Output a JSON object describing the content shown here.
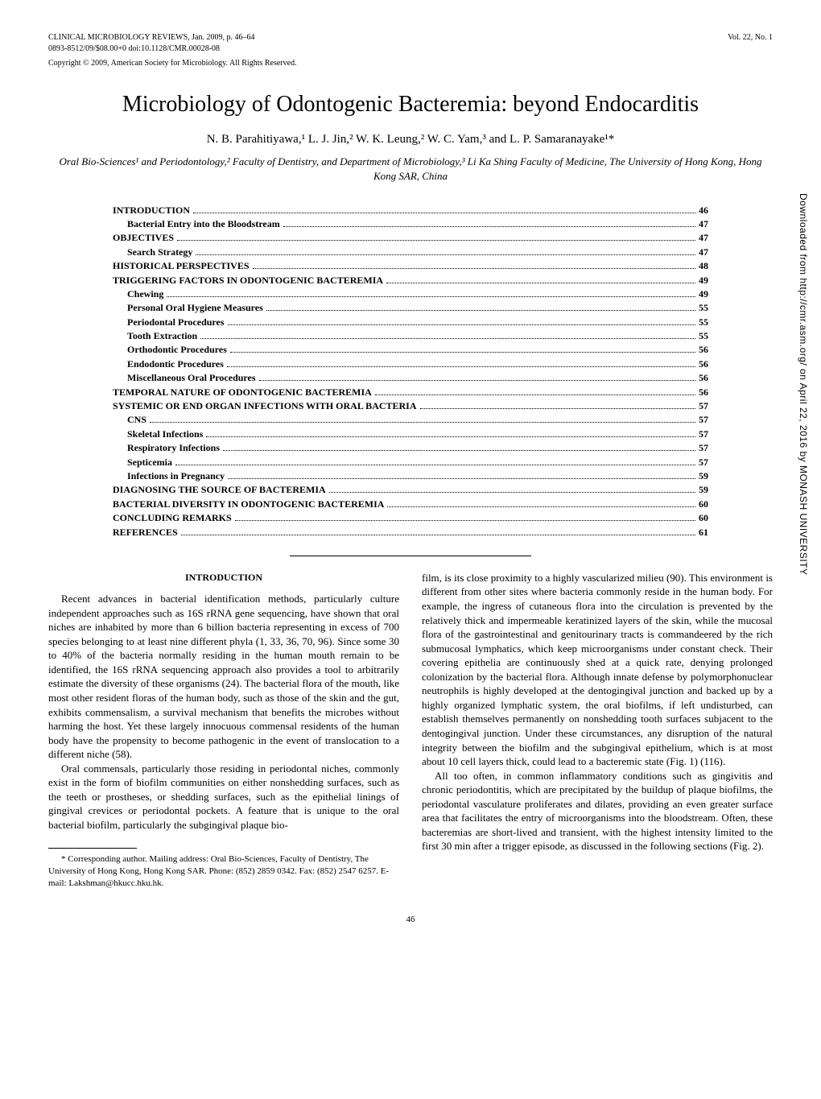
{
  "header": {
    "journal_line1": "CLINICAL MICROBIOLOGY REVIEWS, Jan. 2009, p. 46–64",
    "journal_line2": "0893-8512/09/$08.00+0   doi:10.1128/CMR.00028-08",
    "copyright": "Copyright © 2009, American Society for Microbiology. All Rights Reserved.",
    "vol": "Vol. 22, No. 1"
  },
  "title": "Microbiology of Odontogenic Bacteremia: beyond Endocarditis",
  "authors": "N. B. Parahitiyawa,¹ L. J. Jin,² W. K. Leung,² W. C. Yam,³ and L. P. Samaranayake¹*",
  "affiliations": "Oral Bio-Sciences¹ and Periodontology,² Faculty of Dentistry, and Department of Microbiology,³ Li Ka Shing Faculty of Medicine, The University of Hong Kong, Hong Kong SAR, China",
  "toc": [
    {
      "label": "INTRODUCTION",
      "page": "46",
      "level": 0,
      "bold": true
    },
    {
      "label": "Bacterial Entry into the Bloodstream",
      "page": "47",
      "level": 1,
      "bold": true
    },
    {
      "label": "OBJECTIVES",
      "page": "47",
      "level": 0,
      "bold": true
    },
    {
      "label": "Search Strategy",
      "page": "47",
      "level": 1,
      "bold": true
    },
    {
      "label": "HISTORICAL PERSPECTIVES",
      "page": "48",
      "level": 0,
      "bold": true
    },
    {
      "label": "TRIGGERING FACTORS IN ODONTOGENIC BACTEREMIA",
      "page": "49",
      "level": 0,
      "bold": true
    },
    {
      "label": "Chewing",
      "page": "49",
      "level": 1,
      "bold": true
    },
    {
      "label": "Personal Oral Hygiene Measures",
      "page": "55",
      "level": 1,
      "bold": true
    },
    {
      "label": "Periodontal Procedures",
      "page": "55",
      "level": 1,
      "bold": true
    },
    {
      "label": "Tooth Extraction",
      "page": "55",
      "level": 1,
      "bold": true
    },
    {
      "label": "Orthodontic Procedures",
      "page": "56",
      "level": 1,
      "bold": true
    },
    {
      "label": "Endodontic Procedures",
      "page": "56",
      "level": 1,
      "bold": true
    },
    {
      "label": "Miscellaneous Oral Procedures",
      "page": "56",
      "level": 1,
      "bold": true
    },
    {
      "label": "TEMPORAL NATURE OF ODONTOGENIC BACTEREMIA",
      "page": "56",
      "level": 0,
      "bold": true
    },
    {
      "label": "SYSTEMIC OR END ORGAN INFECTIONS WITH ORAL BACTERIA",
      "page": "57",
      "level": 0,
      "bold": true
    },
    {
      "label": "CNS",
      "page": "57",
      "level": 1,
      "bold": true
    },
    {
      "label": "Skeletal Infections",
      "page": "57",
      "level": 1,
      "bold": true
    },
    {
      "label": "Respiratory Infections",
      "page": "57",
      "level": 1,
      "bold": true
    },
    {
      "label": "Septicemia",
      "page": "57",
      "level": 1,
      "bold": true
    },
    {
      "label": "Infections in Pregnancy",
      "page": "59",
      "level": 1,
      "bold": true
    },
    {
      "label": "DIAGNOSING THE SOURCE OF BACTEREMIA",
      "page": "59",
      "level": 0,
      "bold": true
    },
    {
      "label": "BACTERIAL DIVERSITY IN ODONTOGENIC BACTEREMIA",
      "page": "60",
      "level": 0,
      "bold": true
    },
    {
      "label": "CONCLUDING REMARKS",
      "page": "60",
      "level": 0,
      "bold": true
    },
    {
      "label": "REFERENCES",
      "page": "61",
      "level": 0,
      "bold": true
    }
  ],
  "section": {
    "heading": "INTRODUCTION",
    "left_p1": "Recent advances in bacterial identification methods, particularly culture independent approaches such as 16S rRNA gene sequencing, have shown that oral niches are inhabited by more than 6 billion bacteria representing in excess of 700 species belonging to at least nine different phyla (1, 33, 36, 70, 96). Since some 30 to 40% of the bacteria normally residing in the human mouth remain to be identified, the 16S rRNA sequencing approach also provides a tool to arbitrarily estimate the diversity of these organisms (24). The bacterial flora of the mouth, like most other resident floras of the human body, such as those of the skin and the gut, exhibits commensalism, a survival mechanism that benefits the microbes without harming the host. Yet these largely innocuous commensal residents of the human body have the propensity to become pathogenic in the event of translocation to a different niche (58).",
    "left_p2": "Oral commensals, particularly those residing in periodontal niches, commonly exist in the form of biofilm communities on either nonshedding surfaces, such as the teeth or prostheses, or shedding surfaces, such as the epithelial linings of gingival crevices or periodontal pockets. A feature that is unique to the oral bacterial biofilm, particularly the subgingival plaque bio-",
    "right_p1": "film, is its close proximity to a highly vascularized milieu (90). This environment is different from other sites where bacteria commonly reside in the human body. For example, the ingress of cutaneous flora into the circulation is prevented by the relatively thick and impermeable keratinized layers of the skin, while the mucosal flora of the gastrointestinal and genitourinary tracts is commandeered by the rich submucosal lymphatics, which keep microorganisms under constant check. Their covering epithelia are continuously shed at a quick rate, denying prolonged colonization by the bacterial flora. Although innate defense by polymorphonuclear neutrophils is highly developed at the dentogingival junction and backed up by a highly organized lymphatic system, the oral biofilms, if left undisturbed, can establish themselves permanently on nonshedding tooth surfaces subjacent to the dentogingival junction. Under these circumstances, any disruption of the natural integrity between the biofilm and the subgingival epithelium, which is at most about 10 cell layers thick, could lead to a bacteremic state (Fig. 1) (116).",
    "right_p2": "All too often, in common inflammatory conditions such as gingivitis and chronic periodontitis, which are precipitated by the buildup of plaque biofilms, the periodontal vasculature proliferates and dilates, providing an even greater surface area that facilitates the entry of microorganisms into the bloodstream. Often, these bacteremias are short-lived and transient, with the highest intensity limited to the first 30 min after a trigger episode, as discussed in the following sections (Fig. 2)."
  },
  "footnote": "* Corresponding author. Mailing address: Oral Bio-Sciences, Faculty of Dentistry, The University of Hong Kong, Hong Kong SAR. Phone: (852) 2859 0342. Fax: (852) 2547 6257. E-mail: Lakshman@hkucc.hku.hk.",
  "page_number": "46",
  "side_text": "Downloaded from http://cmr.asm.org/ on April 22, 2016 by MONASH UNIVERSITY"
}
